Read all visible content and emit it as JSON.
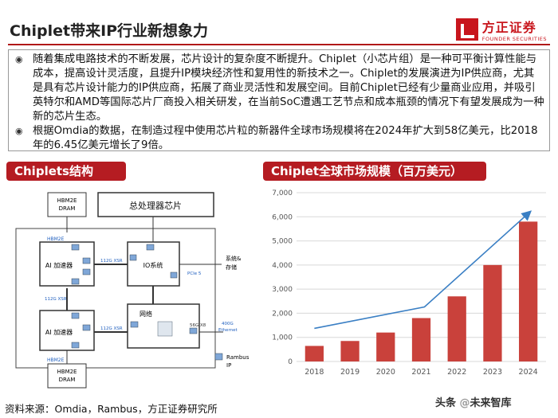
{
  "header": {
    "title": "Chiplet带来IP行业新想象力",
    "logo_cn": "方正证券",
    "logo_en": "FOUNDER SECURITIES"
  },
  "bullets": [
    "随着集成电路技术的不断发展，芯片设计的复杂度不断提升。Chiplet（小芯片组）是一种可平衡计算性能与成本，提高设计灵活度，且提升IP模块经济性和复用性的新技术之一。Chiplet的发展演进为IP供应商，尤其是具有芯片设计能力的IP供应商，拓展了商业灵活性和发展空间。目前Chiplet已经有少量商业应用，并吸引英特尔和AMD等国际芯片厂商投入相关研发，在当前SoC遭遇工艺节点和成本瓶颈的情况下有望发展成为一种新的芯片生态。",
    "根据Omdia的数据，在制造过程中使用芯片粒的新器件全球市场规模将在2024年扩大到58亿美元，比2018年的6.45亿美元增长了9倍。"
  ],
  "left_panel": {
    "title": "Chiplets结构",
    "diagram": {
      "hbm_top": [
        "HBM2E",
        "DRAM"
      ],
      "hbm_bottom": [
        "HBM2E",
        "DRAM"
      ],
      "main_chip": "总处理器芯片",
      "ai_top": "AI 加速器",
      "ai_bottom": "AI 加速器",
      "io": "IO系统",
      "network": "网络",
      "hbm2e_label_1": "HBM2E",
      "hbm2e_label_2": "HBM2E",
      "link_top": "112G XSR",
      "link_mid": "112G XSR",
      "link_bottom": "112G XSR",
      "pcie": "PCIe 5",
      "storage": [
        "系统&",
        "存储"
      ],
      "serdes": "56G X8",
      "ethernet": [
        "400G",
        "Ethernet"
      ],
      "legend": [
        "Rambus",
        "IP"
      ]
    }
  },
  "right_panel": {
    "title": "Chiplet全球市场规模（百万美元）"
  },
  "chart_data": {
    "type": "bar",
    "categories": [
      "2018",
      "2019",
      "2020",
      "2021",
      "2022",
      "2023",
      "2024"
    ],
    "values": [
      645,
      850,
      1200,
      1800,
      2700,
      4000,
      5800
    ],
    "ylim": [
      0,
      7000
    ],
    "yticks": [
      "0",
      "1,000",
      "2,000",
      "3,000",
      "4,000",
      "5,000",
      "6,000",
      "7,000"
    ],
    "grid": true,
    "bar_color": "#c9413b"
  },
  "footer": {
    "source": "资料来源：Omdia，Rambus，方正证券研究所",
    "watermark_a": "头条",
    "watermark_sep": " @",
    "watermark_b": "未来智库"
  }
}
